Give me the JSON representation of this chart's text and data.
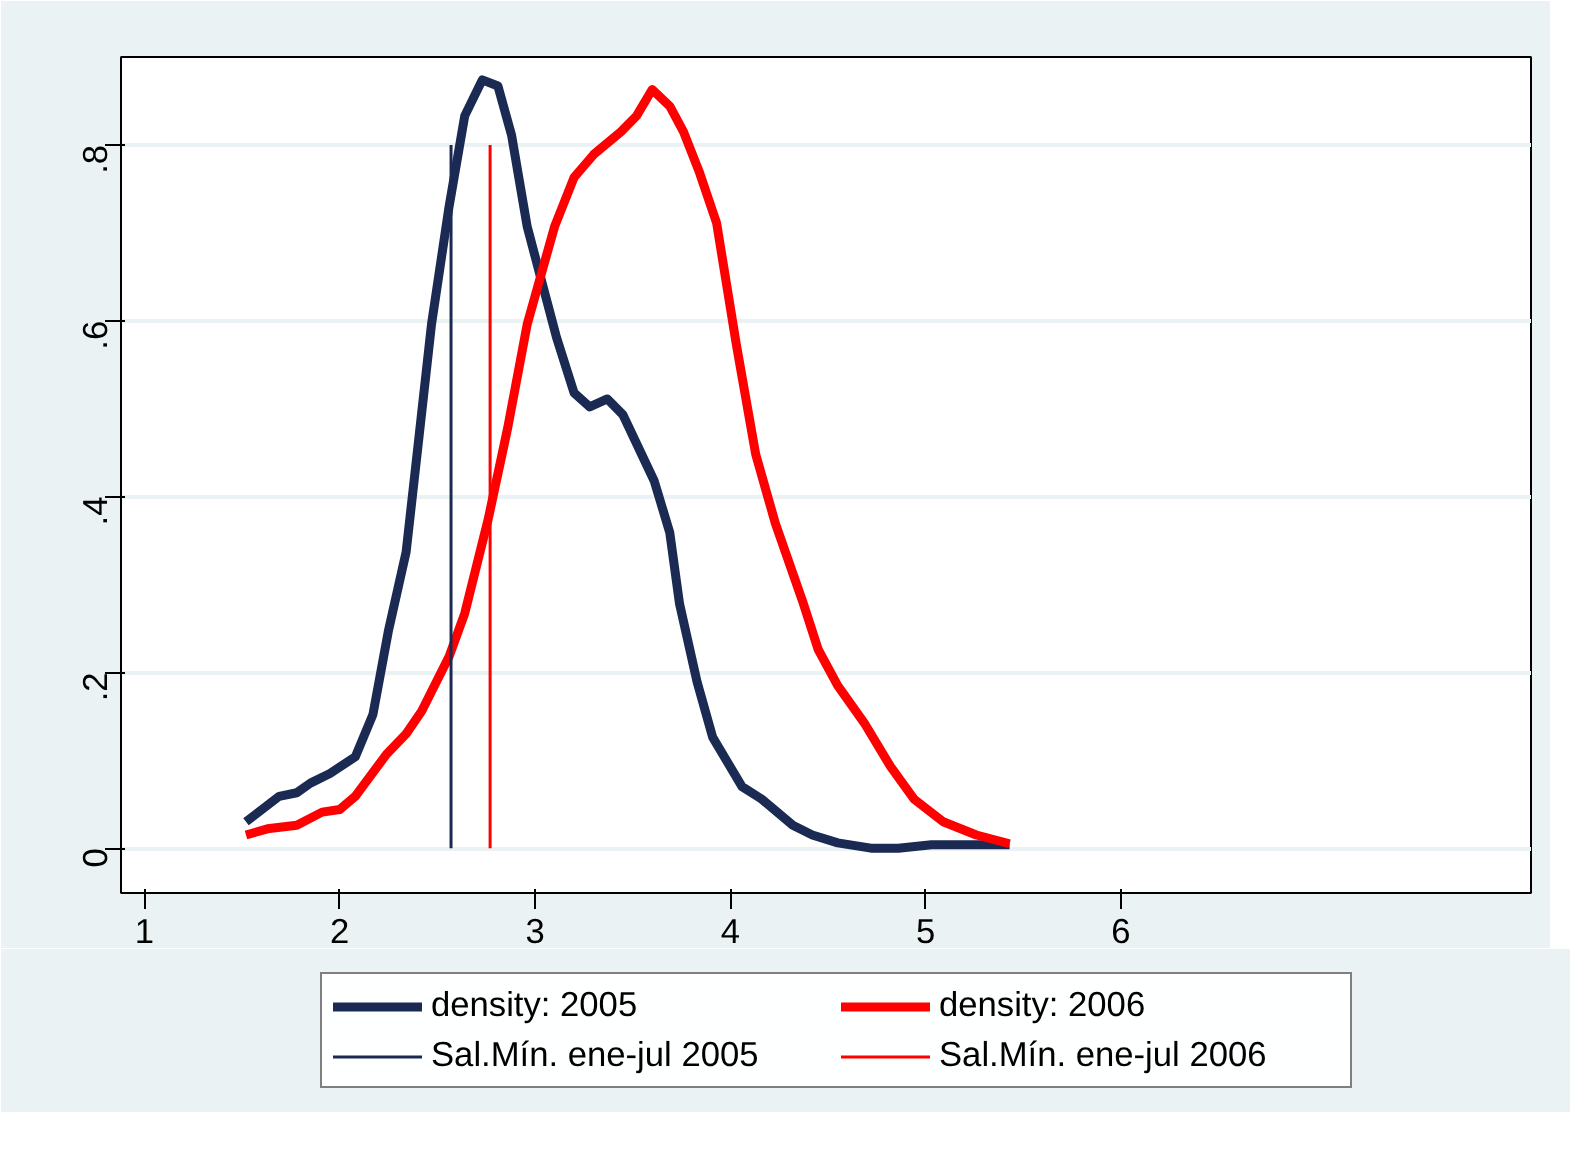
{
  "chart_data": {
    "type": "line",
    "xlim": [
      0.88,
      8.1
    ],
    "ylim": [
      -0.051,
      0.9
    ],
    "xticks": [
      1,
      2,
      3,
      4,
      5,
      6
    ],
    "yticks": [
      0,
      {
        "value": 0.2,
        "label": ".2"
      },
      {
        "value": 0.4,
        "label": ".4"
      },
      {
        "value": 0.6,
        "label": ".6"
      },
      {
        "value": 0.8,
        "label": ".8"
      }
    ],
    "grid": "y",
    "legend": "bottom",
    "series": [
      {
        "name": "density: 2005",
        "color": "#1a2a52",
        "x": [
          1.52,
          1.69,
          1.78,
          1.85,
          1.95,
          2.08,
          2.17,
          2.25,
          2.34,
          2.4,
          2.47,
          2.56,
          2.64,
          2.73,
          2.81,
          2.88,
          2.96,
          3.11,
          3.2,
          3.28,
          3.37,
          3.45,
          3.61,
          3.69,
          3.74,
          3.83,
          3.91,
          4.06,
          4.16,
          4.32,
          4.42,
          4.55,
          4.72,
          4.86,
          5.03,
          5.43
        ],
        "values": [
          0.03,
          0.059,
          0.063,
          0.074,
          0.085,
          0.104,
          0.152,
          0.248,
          0.337,
          0.456,
          0.596,
          0.73,
          0.833,
          0.874,
          0.867,
          0.811,
          0.707,
          0.581,
          0.518,
          0.502,
          0.511,
          0.493,
          0.418,
          0.359,
          0.278,
          0.189,
          0.126,
          0.07,
          0.056,
          0.026,
          0.015,
          0.006,
          0,
          0,
          0.004,
          0.004
        ]
      },
      {
        "name": "density: 2006",
        "color": "#ff0000",
        "x": [
          1.52,
          1.63,
          1.78,
          1.91,
          2.0,
          2.08,
          2.24,
          2.34,
          2.42,
          2.56,
          2.64,
          2.76,
          2.86,
          2.96,
          3.1,
          3.2,
          3.3,
          3.44,
          3.52,
          3.6,
          3.69,
          3.76,
          3.84,
          3.93,
          4.03,
          4.13,
          4.23,
          4.37,
          4.45,
          4.55,
          4.69,
          4.82,
          4.94,
          5.09,
          5.26,
          5.43
        ],
        "values": [
          0.015,
          0.022,
          0.026,
          0.041,
          0.044,
          0.059,
          0.107,
          0.13,
          0.156,
          0.218,
          0.267,
          0.374,
          0.478,
          0.596,
          0.707,
          0.763,
          0.789,
          0.815,
          0.833,
          0.863,
          0.844,
          0.815,
          0.77,
          0.711,
          0.574,
          0.448,
          0.37,
          0.281,
          0.226,
          0.185,
          0.141,
          0.093,
          0.056,
          0.03,
          0.015,
          0.005
        ]
      },
      {
        "name": "Sal.Mín. ene-jul 2005",
        "color": "#1a2a52",
        "x": [
          2.57,
          2.57
        ],
        "values": [
          0,
          0.8
        ]
      },
      {
        "name": "Sal.Mín. ene-jul 2006",
        "color": "#ff0000",
        "x": [
          2.77,
          2.77
        ],
        "values": [
          0,
          0.8
        ]
      }
    ]
  }
}
